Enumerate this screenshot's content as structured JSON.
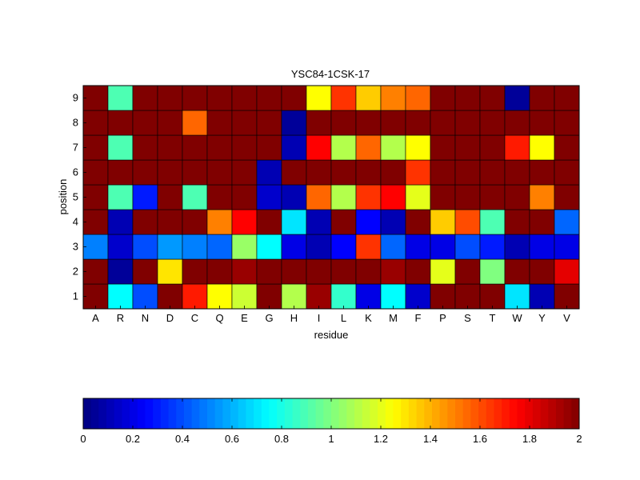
{
  "chart_data": {
    "type": "heatmap",
    "title": "YSC84-1CSK-17",
    "xlabel": "residue",
    "ylabel": "position",
    "x_categories": [
      "A",
      "R",
      "N",
      "D",
      "C",
      "Q",
      "E",
      "G",
      "H",
      "I",
      "L",
      "K",
      "M",
      "F",
      "P",
      "S",
      "T",
      "W",
      "Y",
      "V"
    ],
    "y_categories": [
      "1",
      "2",
      "3",
      "4",
      "5",
      "6",
      "7",
      "8",
      "9"
    ],
    "values": [
      [
        2.0,
        0.75,
        0.4,
        2.0,
        1.7,
        1.25,
        1.15,
        2.0,
        1.1,
        1.95,
        0.85,
        0.2,
        0.75,
        0.15,
        2.0,
        2.0,
        2.0,
        0.7,
        0.1,
        2.0
      ],
      [
        2.0,
        0.05,
        2.0,
        1.3,
        2.0,
        2.0,
        1.95,
        2.0,
        2.0,
        2.0,
        2.0,
        2.0,
        1.95,
        2.0,
        1.2,
        2.0,
        1.0,
        2.0,
        2.0,
        1.8
      ],
      [
        0.5,
        0.15,
        0.4,
        0.55,
        0.5,
        0.45,
        1.05,
        0.75,
        0.2,
        0.1,
        0.25,
        1.65,
        0.45,
        0.2,
        0.2,
        0.4,
        0.3,
        0.1,
        0.2,
        0.2
      ],
      [
        2.0,
        0.1,
        2.0,
        2.0,
        2.0,
        1.5,
        1.75,
        2.0,
        0.7,
        0.1,
        2.0,
        0.25,
        0.1,
        2.0,
        1.35,
        1.6,
        0.9,
        2.0,
        2.0,
        0.45
      ],
      [
        2.0,
        0.9,
        0.3,
        2.0,
        0.9,
        2.0,
        2.0,
        0.15,
        0.1,
        1.55,
        1.1,
        1.65,
        1.75,
        1.2,
        2.0,
        2.0,
        2.0,
        2.0,
        1.5,
        2.0
      ],
      [
        2.0,
        2.0,
        2.0,
        2.0,
        2.0,
        2.0,
        2.0,
        0.1,
        2.0,
        2.0,
        2.0,
        2.0,
        2.0,
        1.65,
        2.0,
        2.0,
        2.0,
        2.0,
        2.0,
        2.0
      ],
      [
        2.0,
        0.9,
        2.0,
        2.0,
        2.0,
        2.0,
        2.0,
        2.0,
        0.1,
        1.75,
        1.1,
        1.55,
        1.1,
        1.25,
        2.0,
        2.0,
        2.0,
        1.7,
        1.25,
        2.0
      ],
      [
        2.0,
        2.0,
        2.0,
        2.0,
        1.55,
        2.0,
        2.0,
        2.0,
        0.05,
        2.0,
        2.0,
        2.0,
        2.0,
        2.0,
        2.0,
        2.0,
        2.0,
        2.0,
        2.0,
        2.0
      ],
      [
        2.0,
        0.9,
        2.0,
        2.0,
        2.0,
        2.0,
        2.0,
        2.0,
        2.0,
        1.25,
        1.65,
        1.35,
        1.5,
        1.55,
        2.0,
        2.0,
        2.0,
        0.05,
        2.0,
        2.0
      ]
    ],
    "colorbar": {
      "colormap": "jet",
      "range": [
        0,
        2
      ],
      "ticks": [
        0,
        0.2,
        0.4,
        0.6,
        0.8,
        1,
        1.2,
        1.4,
        1.6,
        1.8,
        2
      ],
      "tick_labels": [
        "0",
        "0.2",
        "0.4",
        "0.6",
        "0.8",
        "1",
        "1.2",
        "1.4",
        "1.6",
        "1.8",
        "2"
      ],
      "placement": "bottom"
    }
  }
}
